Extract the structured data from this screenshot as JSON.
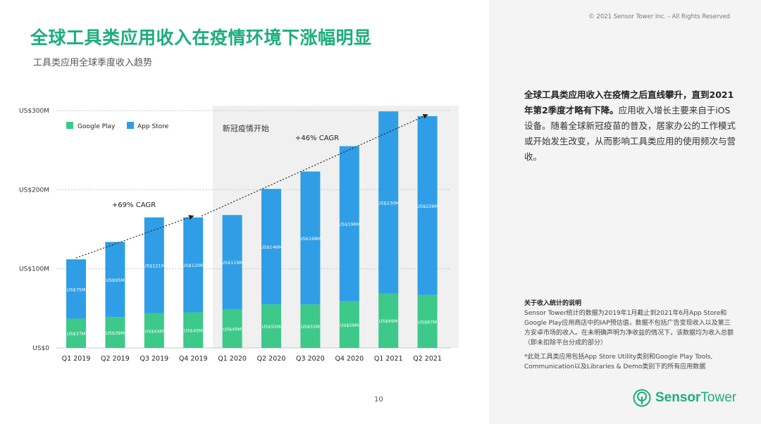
{
  "header": {
    "title": "全球工具类应用收入在疫情环境下涨幅明显",
    "subtitle": "工具类应用全球季度收入趋势",
    "copyright": "© 2021 Sensor Tower Inc. - All Rights Reserved"
  },
  "chart_data": {
    "type": "bar",
    "stacked": true,
    "categories": [
      "Q1 2019",
      "Q2 2019",
      "Q3 2019",
      "Q4 2019",
      "Q1 2020",
      "Q2 2020",
      "Q3 2020",
      "Q4 2020",
      "Q1 2021",
      "Q2 2021"
    ],
    "series": [
      {
        "name": "Google Play",
        "color": "#3cc98a",
        "values": [
          37,
          39,
          44,
          45,
          49,
          55,
          55,
          59,
          69,
          67
        ],
        "labels": [
          "US$37M",
          "US$39M",
          "US$44M",
          "US$45M",
          "US$49M",
          "US$55M",
          "US$55M",
          "US$59M",
          "US$69M",
          "US$67M"
        ]
      },
      {
        "name": "App Store",
        "color": "#2f9ee6",
        "values": [
          75,
          95,
          121,
          120,
          119,
          146,
          168,
          196,
          230,
          226
        ],
        "labels": [
          "US$75M",
          "US$95M",
          "US$121M",
          "US$120M",
          "US$119M",
          "US$146M",
          "US$168M",
          "US$196M",
          "US$230M",
          "US$226M"
        ]
      }
    ],
    "ylim": [
      0,
      300
    ],
    "yticks": [
      0,
      100,
      200,
      300
    ],
    "ytick_labels": [
      "US$0",
      "US$100M",
      "US$200M",
      "US$300M"
    ],
    "grid": true,
    "legend": "top-left",
    "annotations": {
      "covid_label": "新冠疫情开始",
      "covid_start_category": "Q1 2020",
      "cagr_before": {
        "label": "+69% CAGR",
        "from": "Q1 2019",
        "to": "Q4 2019"
      },
      "cagr_after": {
        "label": "+46% CAGR",
        "from": "Q4 2019",
        "to": "Q2 2021"
      }
    }
  },
  "summary": {
    "bold": "全球工具类应用收入在疫情之后直线攀升，直到2021年第2季度才略有下降。",
    "text": "应用收入增长主要来自于iOS设备。随着全球新冠疫苗的普及，居家办公的工作模式或开始发生改变，从而影响工具类应用的使用频次与营收。"
  },
  "note": {
    "heading": "关于收入统计的说明",
    "para1": "Sensor Tower统计的数据为2019年1月截止到2021年6月App Store和Google Play应用商店中的IAP预估值，数据不包括广告变现收入以及第三方安卓市场的收入。在未明确声明为净收益的情况下，该数据均为收入总额（即未扣除平台分成的部分）",
    "para2": "*此处工具类应用包括App Store Utility类别和Google Play Tools, Communication以及Libraries & Demo类别下的所有应用数据"
  },
  "footer": {
    "page_number": "10",
    "logo_word1": "Sensor",
    "logo_word2": "Tower"
  }
}
